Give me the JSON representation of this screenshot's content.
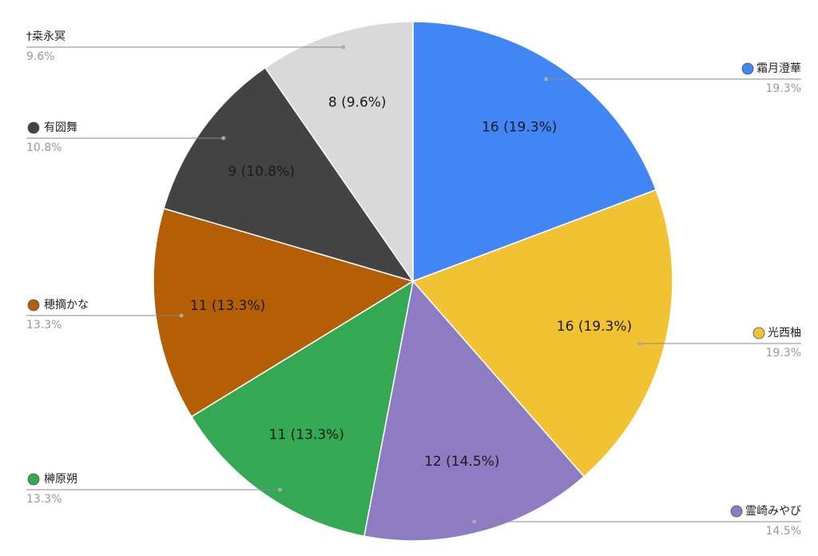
{
  "chart_data": {
    "type": "pie",
    "categories": [
      "霜月澄華",
      "光西柚",
      "霊崎みやび",
      "榊原朔",
      "穂摘かな",
      "有圀舞",
      "†桒永冥"
    ],
    "values": [
      16,
      16,
      12,
      11,
      11,
      9,
      8
    ],
    "value_labels": [
      "16 (19.3%)",
      "16 (19.3%)",
      "12 (14.5%)",
      "11 (13.3%)",
      "11 (13.3%)",
      "9 (10.8%)",
      "8 (9.6%)"
    ],
    "percent_labels": [
      "19.3%",
      "19.3%",
      "14.5%",
      "13.3%",
      "13.3%",
      "10.8%",
      "9.6%"
    ],
    "colors": [
      "#4285f4",
      "#f1c232",
      "#8e7cc3",
      "#34a853",
      "#b45f06",
      "#434343",
      "#d9d9d9"
    ]
  }
}
